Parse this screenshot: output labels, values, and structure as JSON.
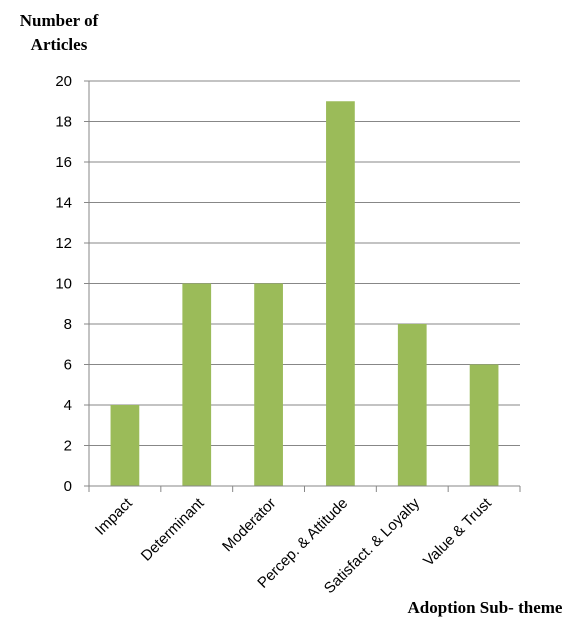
{
  "chart_data": {
    "type": "bar",
    "title": "",
    "ylabel_line1": "Number of",
    "ylabel_line2": "Articles",
    "xlabel": "Adoption Sub- theme",
    "categories": [
      "Impact",
      "Determinant",
      "Moderator",
      "Percep. & Attitude",
      "Satisfact. & Loyalty",
      "Value & Trust"
    ],
    "values": [
      4,
      10,
      10,
      19,
      8,
      6
    ],
    "ylim": [
      0,
      20
    ],
    "yticks": [
      0,
      2,
      4,
      6,
      8,
      10,
      12,
      14,
      16,
      18,
      20
    ],
    "grid": true,
    "legend": "none",
    "bar_color": "#9BBB59"
  }
}
